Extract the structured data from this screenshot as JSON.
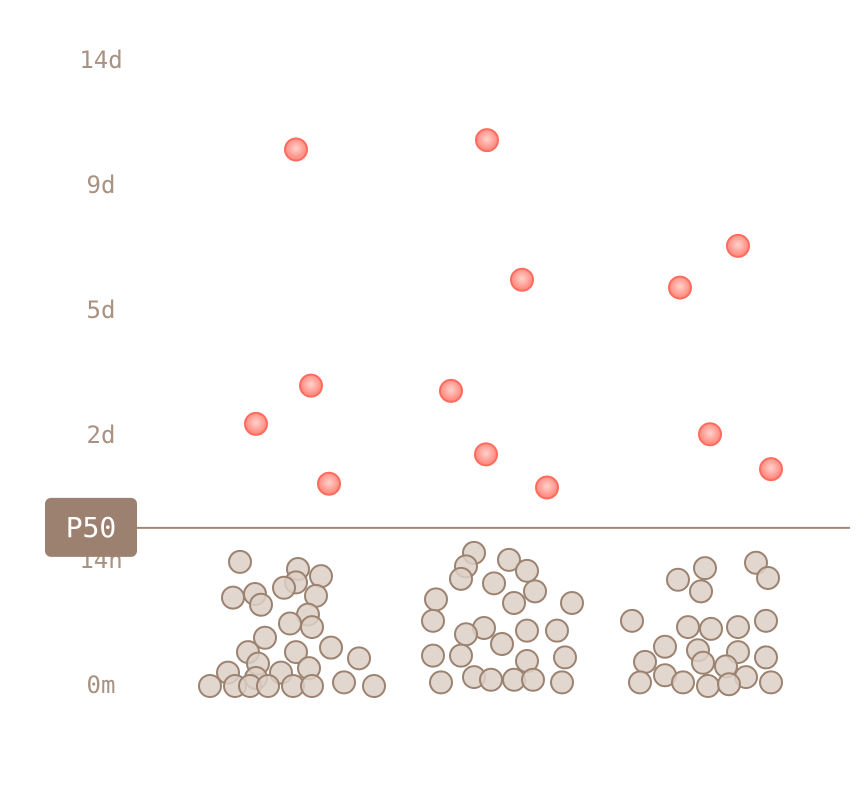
{
  "chart_data": {
    "type": "scatter",
    "y_scale": "piecewise",
    "ylim": [
      0,
      336
    ],
    "yticks": [
      {
        "value": 0,
        "label": "0m"
      },
      {
        "value": 14,
        "label": "14h"
      },
      {
        "value": 48,
        "label": "2d"
      },
      {
        "value": 120,
        "label": "5d"
      },
      {
        "value": 216,
        "label": "9d"
      },
      {
        "value": 336,
        "label": "14d"
      }
    ],
    "xlim": [
      0,
      705
    ],
    "reference_line": {
      "label": "P50",
      "value": 23,
      "color": "#a08878"
    },
    "series": [
      {
        "color": "#ff6b5e",
        "x": [
          151,
          166,
          111,
          184,
          342,
          377,
          306,
          341,
          402,
          593,
          535,
          565,
          626
        ],
        "values": [
          251,
          77,
          55,
          35,
          260,
          144,
          74,
          43,
          34,
          170,
          138,
          49,
          39
        ]
      },
      {
        "color": "#9c8270",
        "x": [
          95,
          153,
          176,
          151,
          139,
          110,
          88,
          171,
          116,
          163,
          145,
          167,
          120,
          186,
          103,
          151,
          214,
          113,
          164,
          83,
          136,
          111,
          65,
          90,
          105,
          123,
          148,
          167,
          199,
          229,
          329,
          364,
          321,
          382,
          316,
          349,
          390,
          291,
          369,
          427,
          288,
          339,
          321,
          382,
          412,
          357,
          288,
          316,
          420,
          382,
          329,
          346,
          296,
          369,
          388,
          417,
          611,
          560,
          623,
          533,
          556,
          487,
          543,
          566,
          593,
          621,
          520,
          553,
          593,
          500,
          558,
          581,
          621,
          520,
          601,
          495,
          538,
          563,
          584,
          626
        ],
        "values": [
          13.9,
          13.1,
          12.3,
          11.6,
          11.0,
          10.3,
          9.9,
          10.1,
          9.1,
          8.0,
          7.0,
          6.6,
          5.4,
          4.3,
          3.8,
          3.8,
          3.1,
          2.5,
          2.0,
          1.5,
          1.5,
          0.9,
          0,
          0,
          0,
          0,
          0,
          0,
          0.4,
          0,
          16.2,
          14.3,
          13.4,
          12.9,
          12.0,
          11.5,
          10.6,
          9.7,
          9.3,
          9.3,
          7.3,
          6.5,
          5.8,
          6.2,
          6.2,
          4.7,
          3.4,
          3.4,
          3.2,
          2.8,
          1.0,
          0.7,
          0.4,
          0.7,
          0.7,
          0.4,
          13.8,
          13.2,
          12.1,
          11.9,
          10.6,
          7.3,
          6.6,
          6.4,
          6.6,
          7.3,
          4.4,
          4.0,
          3.8,
          2.7,
          2.6,
          2.2,
          3.2,
          1.2,
          1.0,
          0.4,
          0.4,
          0,
          0.2,
          0.4
        ]
      }
    ]
  }
}
